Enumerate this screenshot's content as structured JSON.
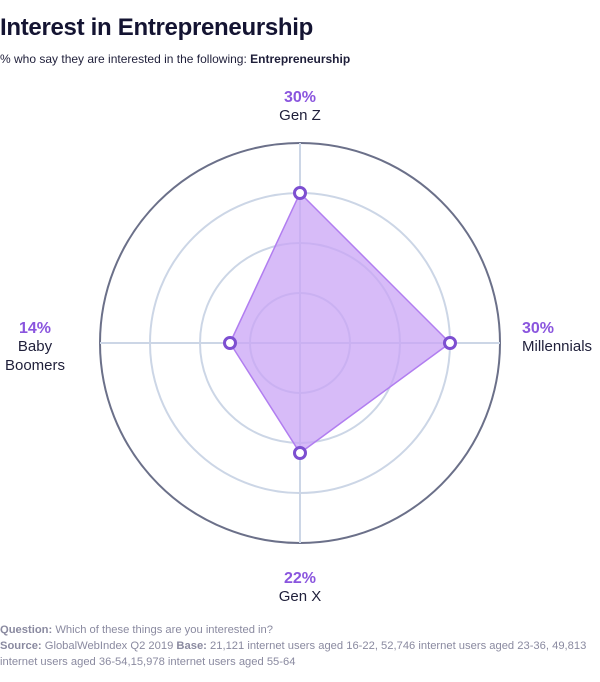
{
  "header": {
    "title": "Interest in Entrepreneurship",
    "subtitle_prefix": "% who say they are interested in the following: ",
    "subtitle_bold": "Entrepreneurship"
  },
  "chart_data": {
    "type": "radar",
    "title": "Interest in Entrepreneurship",
    "rmax": 40,
    "rings": [
      10,
      20,
      30,
      40
    ],
    "series": [
      {
        "name": "Entrepreneurship",
        "values": [
          30,
          30,
          22,
          14
        ]
      }
    ],
    "categories": [
      "Gen Z",
      "Millennials",
      "Gen X",
      "Baby\nBoomers"
    ],
    "value_labels": [
      "30%",
      "30%",
      "22%",
      "14%"
    ],
    "colors": {
      "fill": "#c9a4f5",
      "stroke": "#b17ef0",
      "marker": "#7d4fd1",
      "label_value": "#8a55de",
      "outer_ring": "#6b7089",
      "inner_ring": "#ccd6e6"
    }
  },
  "footer": {
    "question_label": "Question:",
    "question_text": " Which of these things are you interested in?",
    "source_label": "Source:",
    "source_text": " GlobalWebIndex Q2 2019 ",
    "base_label": "Base:",
    "base_text": " 21,121 internet users aged 16-22, 52,746 internet users aged 23-36, 49,813 internet users aged 36-54,15,978 internet users aged 55-64"
  }
}
